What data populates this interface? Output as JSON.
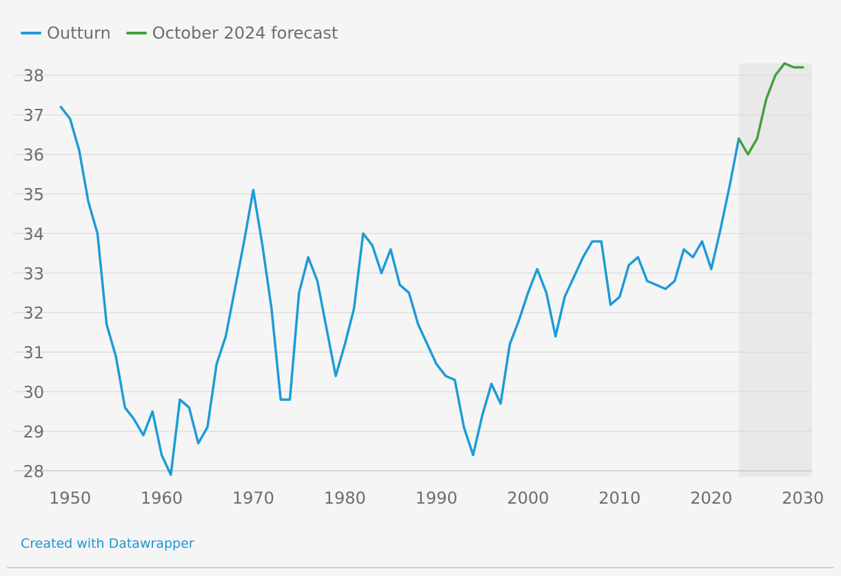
{
  "chart_data": {
    "type": "line",
    "title": "",
    "xlabel": "",
    "ylabel": "",
    "xlim": [
      1948,
      2031
    ],
    "ylim": [
      27.85,
      38.3
    ],
    "x_ticks": [
      "1950",
      "1960",
      "1970",
      "1980",
      "1990",
      "2000",
      "2010",
      "2020",
      "2030"
    ],
    "y_ticks": [
      "28",
      "29",
      "30",
      "31",
      "32",
      "33",
      "34",
      "35",
      "36",
      "37",
      "38"
    ],
    "grid": "horizontal",
    "legend_position": "top-left",
    "forecast_shading": {
      "from": 2023,
      "to": 2031,
      "color": "#e9e9e9"
    },
    "series": [
      {
        "name": "Outturn",
        "color": "#1d9bd7",
        "x": [
          1949,
          1950,
          1951,
          1952,
          1953,
          1954,
          1955,
          1956,
          1957,
          1958,
          1959,
          1960,
          1961,
          1962,
          1963,
          1964,
          1965,
          1966,
          1967,
          1968,
          1969,
          1970,
          1971,
          1972,
          1973,
          1974,
          1975,
          1976,
          1977,
          1978,
          1979,
          1980,
          1981,
          1982,
          1983,
          1984,
          1985,
          1986,
          1987,
          1988,
          1989,
          1990,
          1991,
          1992,
          1993,
          1994,
          1995,
          1996,
          1997,
          1998,
          1999,
          2000,
          2001,
          2002,
          2003,
          2004,
          2005,
          2006,
          2007,
          2008,
          2009,
          2010,
          2011,
          2012,
          2013,
          2014,
          2015,
          2016,
          2017,
          2018,
          2019,
          2020,
          2021,
          2022,
          2023
        ],
        "values": [
          37.2,
          36.9,
          36.1,
          34.8,
          34.0,
          31.7,
          30.9,
          29.6,
          29.3,
          28.9,
          29.5,
          28.4,
          27.9,
          29.8,
          29.6,
          28.7,
          29.1,
          30.7,
          31.4,
          32.6,
          33.8,
          35.1,
          33.7,
          32.1,
          29.8,
          29.8,
          32.5,
          33.4,
          32.8,
          31.6,
          30.4,
          31.2,
          32.1,
          34.0,
          33.7,
          33.0,
          33.6,
          32.7,
          32.5,
          31.7,
          31.2,
          30.7,
          30.4,
          30.3,
          29.1,
          28.4,
          29.4,
          30.2,
          29.7,
          31.2,
          31.8,
          32.5,
          33.1,
          32.5,
          31.4,
          32.4,
          32.9,
          33.4,
          33.8,
          33.8,
          32.2,
          32.4,
          33.2,
          33.4,
          32.8,
          32.7,
          32.6,
          32.8,
          33.6,
          33.4,
          33.8,
          33.1,
          34.1,
          35.2,
          36.4
        ]
      },
      {
        "name": "October 2024 forecast",
        "color": "#43a03b",
        "x": [
          2023,
          2024,
          2025,
          2026,
          2027,
          2028,
          2029,
          2030
        ],
        "values": [
          36.4,
          36.0,
          36.4,
          37.4,
          38.0,
          38.3,
          38.2,
          38.2
        ]
      }
    ]
  },
  "footer": {
    "credit": "Created with Datawrapper"
  }
}
